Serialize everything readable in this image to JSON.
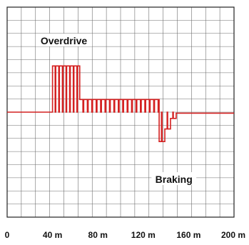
{
  "chart_data": {
    "type": "line",
    "title": "",
    "xlabel": "",
    "ylabel": "",
    "xlim": [
      0,
      200
    ],
    "x_ticks": [
      {
        "value": 0,
        "label": "0"
      },
      {
        "value": 40,
        "label": "40 m"
      },
      {
        "value": 80,
        "label": "80 m"
      },
      {
        "value": 120,
        "label": "120 m"
      },
      {
        "value": 160,
        "label": "160 m"
      },
      {
        "value": 200,
        "label": "200 m"
      }
    ],
    "grid": true,
    "legend": "none",
    "colors": {
      "line": "#d42020",
      "grid": "#6e6e6e",
      "frame": "#222222",
      "background": "#ffffff"
    },
    "annotations": [
      {
        "text": "Overdrive",
        "x": 50,
        "y": 8.3
      },
      {
        "text": "Braking",
        "x": 147,
        "y": 1.7
      }
    ],
    "series": [
      {
        "values": [
          [
            0,
            5
          ],
          [
            40,
            5
          ],
          [
            40,
            7.2
          ],
          [
            64,
            7.2
          ],
          [
            64,
            5.6
          ],
          [
            134,
            5.6
          ],
          [
            134,
            3.6
          ],
          [
            139,
            3.6
          ],
          [
            139,
            4.2
          ],
          [
            144,
            4.2
          ],
          [
            144,
            4.7
          ],
          [
            149,
            4.7
          ],
          [
            149,
            4.95
          ],
          [
            200,
            4.95
          ]
        ],
        "pulses": [
          {
            "x_start": 40,
            "x_end": 64,
            "period": 3.2,
            "low": 5
          },
          {
            "x_start": 64,
            "x_end": 134,
            "period": 3.9,
            "low": 5
          },
          {
            "x_start": 134,
            "x_end": 139,
            "period": 2.8,
            "high": 5
          },
          {
            "x_start": 139,
            "x_end": 144,
            "period": 2.8,
            "high": 5
          },
          {
            "x_start": 144,
            "x_end": 149,
            "period": 2.8,
            "high": 5
          }
        ]
      }
    ]
  }
}
